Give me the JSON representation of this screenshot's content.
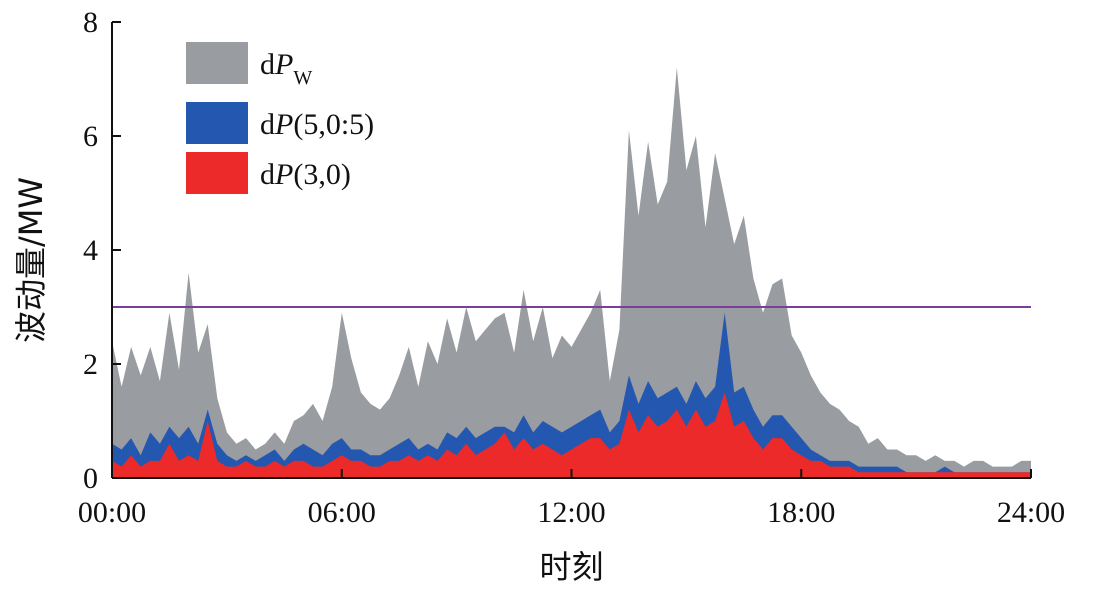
{
  "chart_data": {
    "type": "area",
    "xlabel": "时刻",
    "ylabel": "波动量/MW",
    "xlim": [
      0,
      24
    ],
    "ylim": [
      0,
      8
    ],
    "x_ticks": [
      0,
      6,
      12,
      18,
      24
    ],
    "x_tick_labels": [
      "00:00",
      "06:00",
      "12:00",
      "18:00",
      "24:00"
    ],
    "y_ticks": [
      0,
      2,
      4,
      6,
      8
    ],
    "y_tick_labels": [
      "0",
      "2",
      "4",
      "6",
      "8"
    ],
    "grid": false,
    "legend_position": "top-left",
    "reference_line": {
      "y": 3.0,
      "color": "#7a3f98"
    },
    "series": [
      {
        "name": "dPW",
        "legend_main": "dP",
        "legend_sub": "W",
        "color": "#999ca0",
        "x": [
          0,
          0.25,
          0.5,
          0.75,
          1,
          1.25,
          1.5,
          1.75,
          2,
          2.25,
          2.5,
          2.75,
          3,
          3.25,
          3.5,
          3.75,
          4,
          4.25,
          4.5,
          4.75,
          5,
          5.25,
          5.5,
          5.75,
          6,
          6.25,
          6.5,
          6.75,
          7,
          7.25,
          7.5,
          7.75,
          8,
          8.25,
          8.5,
          8.75,
          9,
          9.25,
          9.5,
          9.75,
          10,
          10.25,
          10.5,
          10.75,
          11,
          11.25,
          11.5,
          11.75,
          12,
          12.25,
          12.5,
          12.75,
          13,
          13.25,
          13.5,
          13.75,
          14,
          14.25,
          14.5,
          14.75,
          15,
          15.25,
          15.5,
          15.75,
          16,
          16.25,
          16.5,
          16.75,
          17,
          17.25,
          17.5,
          17.75,
          18,
          18.25,
          18.5,
          18.75,
          19,
          19.25,
          19.5,
          19.75,
          20,
          20.25,
          20.5,
          20.75,
          21,
          21.25,
          21.5,
          21.75,
          22,
          22.25,
          22.5,
          22.75,
          23,
          23.25,
          23.5,
          23.75,
          24
        ],
        "values": [
          2.4,
          1.6,
          2.3,
          1.8,
          2.3,
          1.7,
          2.9,
          1.9,
          3.6,
          2.2,
          2.7,
          1.4,
          0.8,
          0.6,
          0.7,
          0.5,
          0.6,
          0.8,
          0.6,
          1.0,
          1.1,
          1.3,
          1.0,
          1.6,
          2.9,
          2.1,
          1.5,
          1.3,
          1.2,
          1.4,
          1.8,
          2.3,
          1.6,
          2.4,
          2.0,
          2.8,
          2.2,
          3.0,
          2.4,
          2.6,
          2.8,
          2.9,
          2.2,
          3.3,
          2.4,
          3.0,
          2.1,
          2.5,
          2.3,
          2.6,
          2.9,
          3.3,
          1.7,
          2.6,
          6.1,
          4.6,
          5.9,
          4.8,
          5.2,
          7.2,
          5.4,
          6.0,
          4.4,
          5.7,
          4.9,
          4.1,
          4.6,
          3.5,
          2.9,
          3.4,
          3.5,
          2.5,
          2.2,
          1.8,
          1.5,
          1.3,
          1.2,
          1.0,
          0.9,
          0.6,
          0.7,
          0.5,
          0.5,
          0.4,
          0.4,
          0.3,
          0.4,
          0.3,
          0.3,
          0.2,
          0.3,
          0.3,
          0.2,
          0.2,
          0.2,
          0.3,
          0.3
        ]
      },
      {
        "name": "dP(5,0:5)",
        "legend_main": "dP",
        "legend_sub": "(5,0:5)",
        "color": "#2457b0",
        "x": [
          0,
          0.25,
          0.5,
          0.75,
          1,
          1.25,
          1.5,
          1.75,
          2,
          2.25,
          2.5,
          2.75,
          3,
          3.25,
          3.5,
          3.75,
          4,
          4.25,
          4.5,
          4.75,
          5,
          5.25,
          5.5,
          5.75,
          6,
          6.25,
          6.5,
          6.75,
          7,
          7.25,
          7.5,
          7.75,
          8,
          8.25,
          8.5,
          8.75,
          9,
          9.25,
          9.5,
          9.75,
          10,
          10.25,
          10.5,
          10.75,
          11,
          11.25,
          11.5,
          11.75,
          12,
          12.25,
          12.5,
          12.75,
          13,
          13.25,
          13.5,
          13.75,
          14,
          14.25,
          14.5,
          14.75,
          15,
          15.25,
          15.5,
          15.75,
          16,
          16.25,
          16.5,
          16.75,
          17,
          17.25,
          17.5,
          17.75,
          18,
          18.25,
          18.5,
          18.75,
          19,
          19.25,
          19.5,
          19.75,
          20,
          20.25,
          20.5,
          20.75,
          21,
          21.25,
          21.5,
          21.75,
          22,
          22.25,
          22.5,
          22.75,
          23,
          23.25,
          23.5,
          23.75,
          24
        ],
        "values": [
          0.6,
          0.5,
          0.7,
          0.4,
          0.8,
          0.6,
          0.9,
          0.7,
          0.9,
          0.6,
          1.2,
          0.6,
          0.4,
          0.3,
          0.4,
          0.3,
          0.4,
          0.5,
          0.3,
          0.5,
          0.6,
          0.5,
          0.4,
          0.6,
          0.7,
          0.5,
          0.5,
          0.4,
          0.4,
          0.5,
          0.6,
          0.7,
          0.5,
          0.6,
          0.5,
          0.8,
          0.7,
          0.9,
          0.7,
          0.8,
          0.9,
          0.9,
          0.8,
          1.1,
          0.8,
          1.0,
          0.9,
          0.8,
          0.9,
          1.0,
          1.1,
          1.2,
          0.8,
          1.0,
          1.8,
          1.3,
          1.7,
          1.4,
          1.5,
          1.6,
          1.3,
          1.7,
          1.4,
          1.6,
          2.9,
          1.5,
          1.6,
          1.2,
          0.9,
          1.1,
          1.1,
          0.9,
          0.7,
          0.5,
          0.4,
          0.3,
          0.3,
          0.3,
          0.2,
          0.2,
          0.2,
          0.2,
          0.2,
          0.1,
          0.1,
          0.1,
          0.1,
          0.2,
          0.1,
          0.1,
          0.1,
          0.1,
          0.1,
          0.1,
          0.1,
          0.1,
          0.1
        ]
      },
      {
        "name": "dP(3,0)",
        "legend_main": "dP",
        "legend_sub": "(3,0)",
        "color": "#ec2a2a",
        "x": [
          0,
          0.25,
          0.5,
          0.75,
          1,
          1.25,
          1.5,
          1.75,
          2,
          2.25,
          2.5,
          2.75,
          3,
          3.25,
          3.5,
          3.75,
          4,
          4.25,
          4.5,
          4.75,
          5,
          5.25,
          5.5,
          5.75,
          6,
          6.25,
          6.5,
          6.75,
          7,
          7.25,
          7.5,
          7.75,
          8,
          8.25,
          8.5,
          8.75,
          9,
          9.25,
          9.5,
          9.75,
          10,
          10.25,
          10.5,
          10.75,
          11,
          11.25,
          11.5,
          11.75,
          12,
          12.25,
          12.5,
          12.75,
          13,
          13.25,
          13.5,
          13.75,
          14,
          14.25,
          14.5,
          14.75,
          15,
          15.25,
          15.5,
          15.75,
          16,
          16.25,
          16.5,
          16.75,
          17,
          17.25,
          17.5,
          17.75,
          18,
          18.25,
          18.5,
          18.75,
          19,
          19.25,
          19.5,
          19.75,
          20,
          20.25,
          20.5,
          20.75,
          21,
          21.25,
          21.5,
          21.75,
          22,
          22.25,
          22.5,
          22.75,
          23,
          23.25,
          23.5,
          23.75,
          24
        ],
        "values": [
          0.3,
          0.2,
          0.4,
          0.2,
          0.3,
          0.3,
          0.6,
          0.3,
          0.4,
          0.3,
          1.0,
          0.3,
          0.2,
          0.2,
          0.3,
          0.2,
          0.2,
          0.3,
          0.2,
          0.3,
          0.3,
          0.2,
          0.2,
          0.3,
          0.4,
          0.3,
          0.3,
          0.2,
          0.2,
          0.3,
          0.3,
          0.4,
          0.3,
          0.4,
          0.3,
          0.5,
          0.4,
          0.6,
          0.4,
          0.5,
          0.6,
          0.8,
          0.5,
          0.7,
          0.5,
          0.6,
          0.5,
          0.4,
          0.5,
          0.6,
          0.7,
          0.7,
          0.5,
          0.6,
          1.2,
          0.8,
          1.1,
          0.9,
          1.0,
          1.2,
          0.9,
          1.2,
          0.9,
          1.0,
          1.5,
          0.9,
          1.0,
          0.7,
          0.5,
          0.7,
          0.7,
          0.5,
          0.4,
          0.3,
          0.3,
          0.2,
          0.2,
          0.2,
          0.1,
          0.1,
          0.1,
          0.1,
          0.1,
          0.1,
          0.1,
          0.1,
          0.1,
          0.1,
          0.1,
          0.1,
          0.1,
          0.1,
          0.1,
          0.1,
          0.1,
          0.1,
          0.1
        ]
      }
    ]
  }
}
